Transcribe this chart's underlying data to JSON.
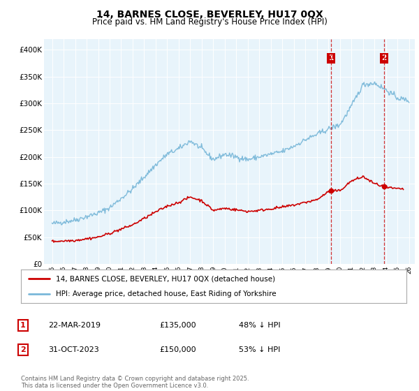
{
  "title": "14, BARNES CLOSE, BEVERLEY, HU17 0QX",
  "subtitle": "Price paid vs. HM Land Registry's House Price Index (HPI)",
  "ylim": [
    0,
    420000
  ],
  "yticks": [
    0,
    50000,
    100000,
    150000,
    200000,
    250000,
    300000,
    350000,
    400000
  ],
  "ytick_labels": [
    "£0",
    "£50K",
    "£100K",
    "£150K",
    "£200K",
    "£250K",
    "£300K",
    "£350K",
    "£400K"
  ],
  "hpi_color": "#7ab8d9",
  "price_color": "#cc0000",
  "vline_color": "#cc0000",
  "plot_bg_color": "#e8f4fb",
  "legend_label_price": "14, BARNES CLOSE, BEVERLEY, HU17 0QX (detached house)",
  "legend_label_hpi": "HPI: Average price, detached house, East Riding of Yorkshire",
  "sale1_date": "22-MAR-2019",
  "sale1_price": "£135,000",
  "sale1_pct": "48% ↓ HPI",
  "sale1_label": "1",
  "sale1_x_year": 2019.22,
  "sale2_date": "31-OCT-2023",
  "sale2_price": "£150,000",
  "sale2_pct": "53% ↓ HPI",
  "sale2_label": "2",
  "sale2_x_year": 2023.83,
  "footer": "Contains HM Land Registry data © Crown copyright and database right 2025.\nThis data is licensed under the Open Government Licence v3.0.",
  "title_fontsize": 10,
  "subtitle_fontsize": 8.5,
  "tick_fontsize": 7.5,
  "legend_fontsize": 7.5,
  "xlim_left": 1994.3,
  "xlim_right": 2026.5
}
